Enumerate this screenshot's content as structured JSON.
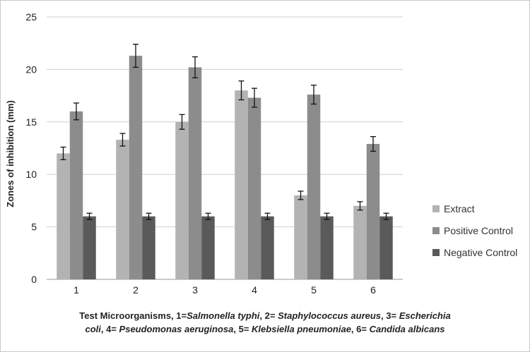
{
  "chart_data": {
    "type": "bar",
    "title": "",
    "xlabel": "Test Microorganisms, 1=Salmonella typhi, 2= Staphylococcus aureus, 3= Escherichia coli, 4= Pseudomonas aeruginosa, 5= Klebsiella pneumoniae, 6= Candida albicans",
    "ylabel": "Zones of inhibition (mm)",
    "ylim": [
      0,
      25
    ],
    "yticks": [
      "0",
      "5",
      "10",
      "15",
      "20",
      "25"
    ],
    "categories": [
      "1",
      "2",
      "3",
      "4",
      "5",
      "6"
    ],
    "grid": "horizontal",
    "legend_position": "right",
    "series": [
      {
        "name": "Extract",
        "color": "#b3b3b3",
        "values": [
          12,
          13.3,
          15,
          18,
          8,
          7
        ],
        "errors": [
          0.6,
          0.6,
          0.7,
          0.9,
          0.4,
          0.4
        ]
      },
      {
        "name": "Positive Control",
        "color": "#8c8c8c",
        "values": [
          16,
          21.3,
          20.2,
          17.3,
          17.6,
          12.9
        ],
        "errors": [
          0.8,
          1.1,
          1.0,
          0.9,
          0.9,
          0.7
        ]
      },
      {
        "name": "Negative Control",
        "color": "#5a5a5a",
        "values": [
          6,
          6,
          6,
          6,
          6,
          6
        ],
        "errors": [
          0.3,
          0.3,
          0.3,
          0.3,
          0.3,
          0.3
        ]
      }
    ]
  },
  "caption": {
    "line1": [
      {
        "t": "Test Microorganisms, 1=",
        "i": false
      },
      {
        "t": "Salmonella  typhi",
        "i": true
      },
      {
        "t": ", 2= ",
        "i": false
      },
      {
        "t": "Staphylococcus  aureus",
        "i": true
      },
      {
        "t": ", 3= ",
        "i": false
      },
      {
        "t": "Escherichia",
        "i": true
      }
    ],
    "line2": [
      {
        "t": "coli",
        "i": true
      },
      {
        "t": ", 4= ",
        "i": false
      },
      {
        "t": "Pseudomonas aeruginosa",
        "i": true
      },
      {
        "t": ", 5=  ",
        "i": false
      },
      {
        "t": "Klebsiella pneumoniae",
        "i": true
      },
      {
        "t": ", 6= ",
        "i": false
      },
      {
        "t": "Candida albicans",
        "i": true
      }
    ]
  }
}
